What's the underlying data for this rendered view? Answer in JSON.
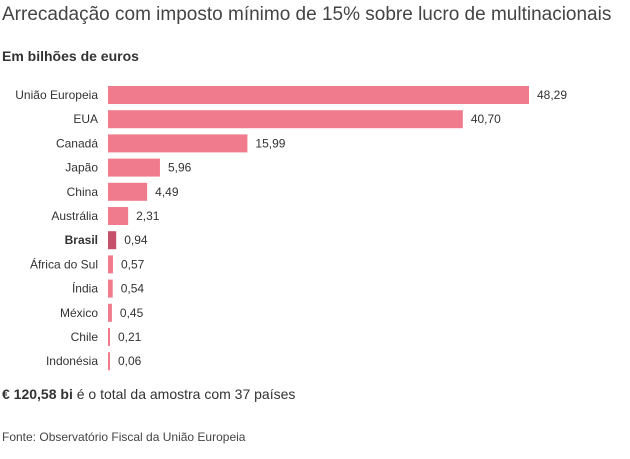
{
  "title": "Arrecadação com imposto mínimo de 15% sobre lucro de multinacionais",
  "subtitle": "Em bilhões de euros",
  "colors": {
    "bar": "#f07b8c",
    "highlight_bar": "#c4506a"
  },
  "chart_data": {
    "type": "bar",
    "orientation": "horizontal",
    "categories": [
      "União Europeia",
      "EUA",
      "Canadá",
      "Japão",
      "China",
      "Austrália",
      "Brasil",
      "África do Sul",
      "Índia",
      "México",
      "Chile",
      "Indonésia"
    ],
    "values": [
      48.29,
      40.7,
      15.99,
      5.96,
      4.49,
      2.31,
      0.94,
      0.57,
      0.54,
      0.45,
      0.21,
      0.06
    ],
    "value_labels": [
      "48,29",
      "40,70",
      "15,99",
      "5,96",
      "4,49",
      "2,31",
      "0,94",
      "0,57",
      "0,54",
      "0,45",
      "0,21",
      "0,06"
    ],
    "highlight": "Brasil",
    "xlim": [
      0,
      48.29
    ],
    "grid": false
  },
  "total": {
    "value": "€ 120,58 bi",
    "text": " é o total da amostra com 37 países"
  },
  "source": "Fonte: Observatório Fiscal da União Europeia"
}
